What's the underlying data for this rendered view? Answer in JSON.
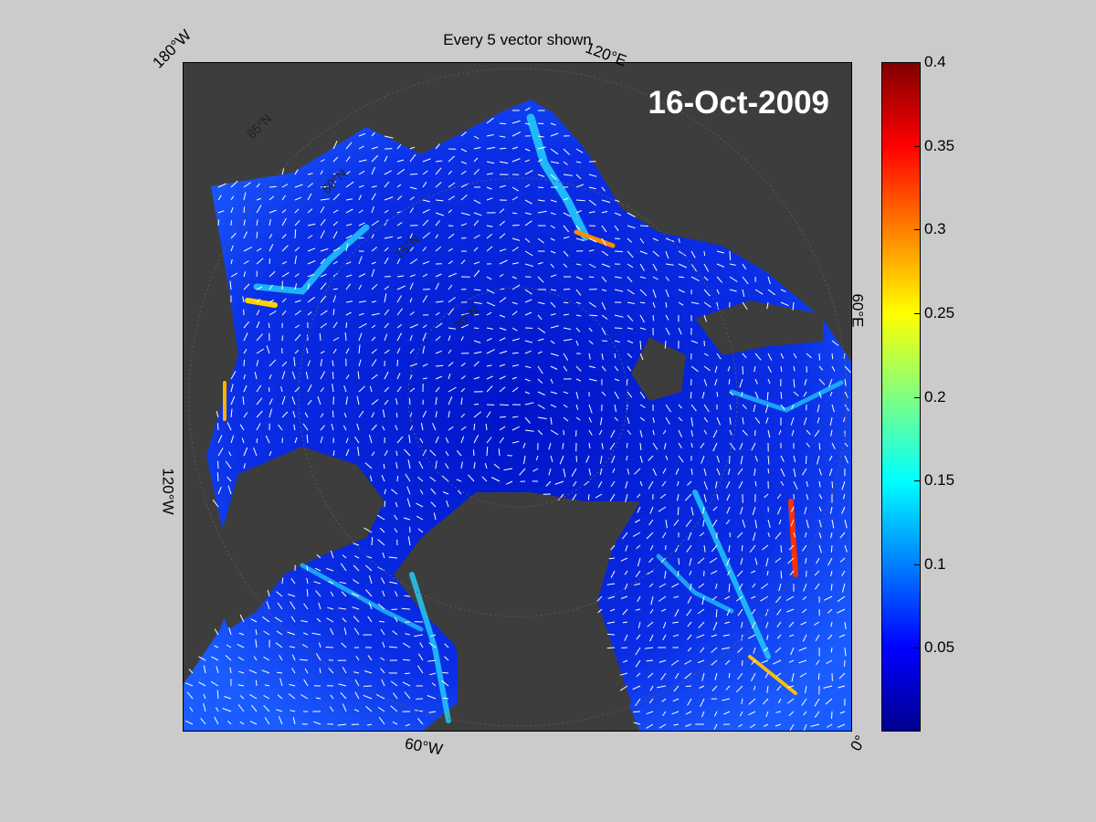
{
  "map": {
    "title": "Every 5 vector shown",
    "date": "16-Oct-2009",
    "longitude_labels": [
      "180°W",
      "120°E",
      "60°E",
      "120°W",
      "60°W",
      "0°"
    ],
    "latitude_labels": [
      "85°N",
      "80°N",
      "75°N",
      "70°N"
    ],
    "colors": {
      "background": "#cbcbcb",
      "land": "#3d3d3d",
      "ocean_low": "#0a2ae6",
      "vectors": "#ffffff"
    }
  },
  "colorbar": {
    "ticks": [
      "0.4",
      "0.35",
      "0.3",
      "0.25",
      "0.2",
      "0.15",
      "0.1",
      "0.05"
    ],
    "tick_values": [
      0.4,
      0.35,
      0.3,
      0.25,
      0.2,
      0.15,
      0.1,
      0.05
    ],
    "min": 0,
    "max": 0.4,
    "colormap": "jet"
  }
}
